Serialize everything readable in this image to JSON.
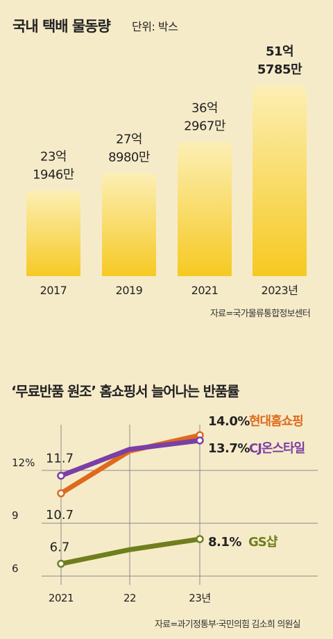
{
  "title": "국내 택배 물동량",
  "unit_label": "단위: 박스",
  "source_top": "자료=국가물류통합정보센터",
  "title2": "‘무료반품 원조’ 홈쇼핑서 늘어나는 반품률",
  "source_bottom": "자료=과기정통부·국민의힘 김소희 의원실",
  "colors": {
    "background": "#f6ebc9",
    "bar_top": "#fcefb4",
    "bar_bottom": "#f6c81e",
    "hyundai": "#de6a1c",
    "cj": "#7b3fa6",
    "gs": "#6e7f1c"
  },
  "chart_data": [
    {
      "type": "bar",
      "title": "국내 택배 물동량",
      "unit": "단위: 박스",
      "categories": [
        "2017",
        "2019",
        "2021",
        "2023년"
      ],
      "values": [
        2319460000,
        2789800000,
        3629670000,
        5157850000
      ],
      "value_labels": [
        [
          "23억",
          "1946만"
        ],
        [
          "27억",
          "8980만"
        ],
        [
          "36억",
          "2967만"
        ],
        [
          "51억",
          "5785만"
        ]
      ],
      "ylim": [
        0,
        5500000000
      ],
      "grid": false
    },
    {
      "type": "line",
      "title": "‘무료반품 원조’ 홈쇼핑서 늘어나는 반품률",
      "x": [
        "2021",
        "22",
        "23년"
      ],
      "y_ticks": [
        {
          "value": 6,
          "label": "6"
        },
        {
          "value": 9,
          "label": "9"
        },
        {
          "value": 12,
          "label": "12%"
        }
      ],
      "ylim": [
        5.5,
        14.6
      ],
      "grid": true,
      "series": [
        {
          "name": "현대홈쇼핑",
          "values": [
            10.7,
            13.1,
            14.0
          ],
          "labels": [
            "10.7",
            null,
            "14.0%"
          ],
          "color": "#de6a1c"
        },
        {
          "name": "CJ온스타일",
          "values": [
            11.7,
            13.2,
            13.7
          ],
          "labels": [
            "11.7",
            null,
            "13.7%"
          ],
          "color": "#7b3fa6"
        },
        {
          "name": "GS샵",
          "values": [
            6.7,
            7.5,
            8.1
          ],
          "labels": [
            "6.7",
            null,
            "8.1%"
          ],
          "color": "#6e7f1c"
        }
      ]
    }
  ]
}
